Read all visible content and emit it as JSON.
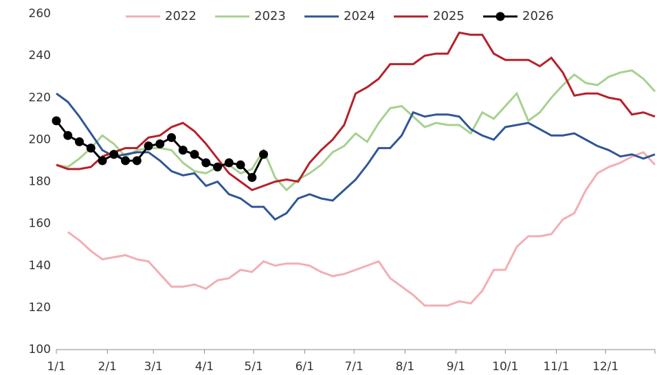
{
  "chart_data": {
    "type": "line",
    "x": [
      0,
      1,
      2,
      3,
      4,
      5,
      6,
      7,
      8,
      9,
      10,
      11,
      12,
      13,
      14,
      15,
      16,
      17,
      18,
      19,
      20,
      21,
      22,
      23,
      24,
      25,
      26,
      27,
      28,
      29,
      30,
      31,
      32,
      33,
      34,
      35,
      36,
      37,
      38,
      39,
      40,
      41,
      42,
      43,
      44,
      45,
      46,
      47,
      48,
      49,
      50,
      51,
      52
    ],
    "xlim": [
      0,
      52
    ],
    "xticks": [
      {
        "value": 0,
        "label": "1/1"
      },
      {
        "value": 4.43,
        "label": "2/1"
      },
      {
        "value": 8.43,
        "label": "3/1"
      },
      {
        "value": 12.86,
        "label": "4/1"
      },
      {
        "value": 17.14,
        "label": "5/1"
      },
      {
        "value": 21.57,
        "label": "6/1"
      },
      {
        "value": 25.86,
        "label": "7/1"
      },
      {
        "value": 30.29,
        "label": "8/1"
      },
      {
        "value": 34.71,
        "label": "9/1"
      },
      {
        "value": 39,
        "label": "10/1"
      },
      {
        "value": 43.43,
        "label": "11/1"
      },
      {
        "value": 47.71,
        "label": "12/1"
      }
    ],
    "ylim": [
      100,
      260
    ],
    "yticks": [
      100,
      120,
      140,
      160,
      180,
      200,
      220,
      240,
      260
    ],
    "legend": "top",
    "series": [
      {
        "name": "2022",
        "color": "#f2aeb3",
        "values": [
          null,
          156,
          152,
          147,
          143,
          144,
          145,
          143,
          142,
          136,
          130,
          130,
          131,
          129,
          133,
          134,
          138,
          137,
          142,
          140,
          141,
          141,
          140,
          137,
          135,
          136,
          138,
          140,
          142,
          134,
          130,
          126,
          121,
          121,
          121,
          123,
          122,
          128,
          138,
          138,
          149,
          154,
          154,
          155,
          162,
          165,
          176,
          184,
          187,
          189,
          192,
          194,
          188
        ]
      },
      {
        "name": "2023",
        "color": "#a6d18f",
        "values": [
          188,
          187,
          191,
          196,
          202,
          198,
          192,
          195,
          196,
          196,
          195,
          189,
          185,
          184,
          187,
          188,
          184,
          186,
          195,
          182,
          176,
          181,
          184,
          188,
          194,
          197,
          203,
          199,
          208,
          215,
          216,
          211,
          206,
          208,
          207,
          207,
          203,
          213,
          210,
          216,
          222,
          209,
          213,
          220,
          226,
          231,
          227,
          226,
          230,
          232,
          233,
          229,
          223
        ]
      },
      {
        "name": "2024",
        "color": "#2f5597",
        "values": [
          222,
          218,
          211,
          203,
          195,
          192,
          193,
          194,
          194,
          190,
          185,
          183,
          184,
          178,
          180,
          174,
          172,
          168,
          168,
          162,
          165,
          172,
          174,
          172,
          171,
          176,
          181,
          188,
          196,
          196,
          202,
          213,
          211,
          212,
          212,
          211,
          205,
          202,
          200,
          206,
          207,
          208,
          205,
          202,
          202,
          203,
          200,
          197,
          195,
          192,
          193,
          191,
          193
        ]
      },
      {
        "name": "2025",
        "color": "#b5202a",
        "values": [
          188,
          186,
          186,
          187,
          192,
          194,
          196,
          196,
          201,
          202,
          206,
          208,
          204,
          198,
          191,
          184,
          180,
          176,
          178,
          180,
          181,
          180,
          189,
          195,
          200,
          207,
          222,
          225,
          229,
          236,
          236,
          236,
          240,
          241,
          241,
          251,
          250,
          250,
          241,
          238,
          238,
          238,
          235,
          239,
          232,
          221,
          222,
          222,
          220,
          219,
          212,
          213,
          211
        ]
      },
      {
        "name": "2026",
        "color": "#000000",
        "values": [
          209,
          202,
          199,
          196,
          190,
          193,
          190,
          190,
          197,
          198,
          201,
          195,
          193,
          189,
          187,
          189,
          188,
          182,
          193,
          null,
          null,
          null,
          null,
          null,
          null,
          null,
          null,
          null,
          null,
          null,
          null,
          null,
          null,
          null,
          null,
          null,
          null,
          null,
          null,
          null,
          null,
          null,
          null,
          null,
          null,
          null,
          null,
          null,
          null,
          null,
          null,
          null,
          null
        ]
      }
    ]
  }
}
